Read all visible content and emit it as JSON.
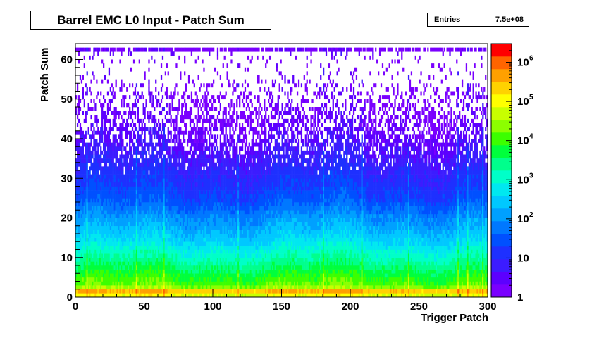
{
  "title": "Barrel EMC L0 Input - Patch Sum",
  "stats": {
    "label": "Entries",
    "value": "7.5e+08"
  },
  "chart_data": {
    "type": "heatmap",
    "title": "Barrel EMC L0 Input - Patch Sum",
    "xlabel": "Trigger Patch",
    "ylabel": "Patch Sum",
    "xlim": [
      0,
      300
    ],
    "ylim": [
      0,
      64
    ],
    "x_ticks": [
      0,
      50,
      100,
      150,
      200,
      250,
      300
    ],
    "y_ticks": [
      0,
      10,
      20,
      30,
      40,
      50,
      60
    ],
    "x_bins": 300,
    "y_bins": 64,
    "z_scale": "log",
    "zlim": [
      1,
      3000000
    ],
    "z_ticks": [
      {
        "value": 1,
        "label": "1"
      },
      {
        "value": 10,
        "label": "10"
      },
      {
        "value": 100,
        "label": "10",
        "exp": "2"
      },
      {
        "value": 1000,
        "label": "10",
        "exp": "3"
      },
      {
        "value": 10000,
        "label": "10",
        "exp": "4"
      },
      {
        "value": 100000,
        "label": "10",
        "exp": "5"
      },
      {
        "value": 1000000,
        "label": "10",
        "exp": "6"
      }
    ],
    "entries": 750000000,
    "row_profile": [
      {
        "y": 0,
        "log10_counts": 3.5
      },
      {
        "y": 1,
        "log10_counts": 6.3
      },
      {
        "y": 2,
        "log10_counts": 4.6
      },
      {
        "y": 3,
        "log10_counts": 4.2
      },
      {
        "y": 5,
        "log10_counts": 3.9
      },
      {
        "y": 8,
        "log10_counts": 3.5
      },
      {
        "y": 10,
        "log10_counts": 3.2
      },
      {
        "y": 15,
        "log10_counts": 2.5
      },
      {
        "y": 20,
        "log10_counts": 2.0
      },
      {
        "y": 25,
        "log10_counts": 1.4
      },
      {
        "y": 30,
        "log10_counts": 1.1
      },
      {
        "y": 35,
        "log10_counts": 0.8
      },
      {
        "y": 40,
        "log10_counts": 0.5
      },
      {
        "y": 45,
        "log10_counts": 0.3
      },
      {
        "y": 50,
        "log10_counts": 0.2
      },
      {
        "y": 55,
        "log10_counts": 0.15
      },
      {
        "y": 60,
        "log10_counts": 0.1
      },
      {
        "y": 62,
        "log10_counts": 0.4
      },
      {
        "y": 63,
        "log10_counts": 0
      }
    ],
    "hot_columns": [
      8,
      44,
      64,
      118,
      180,
      208,
      242,
      278,
      285,
      296
    ]
  }
}
